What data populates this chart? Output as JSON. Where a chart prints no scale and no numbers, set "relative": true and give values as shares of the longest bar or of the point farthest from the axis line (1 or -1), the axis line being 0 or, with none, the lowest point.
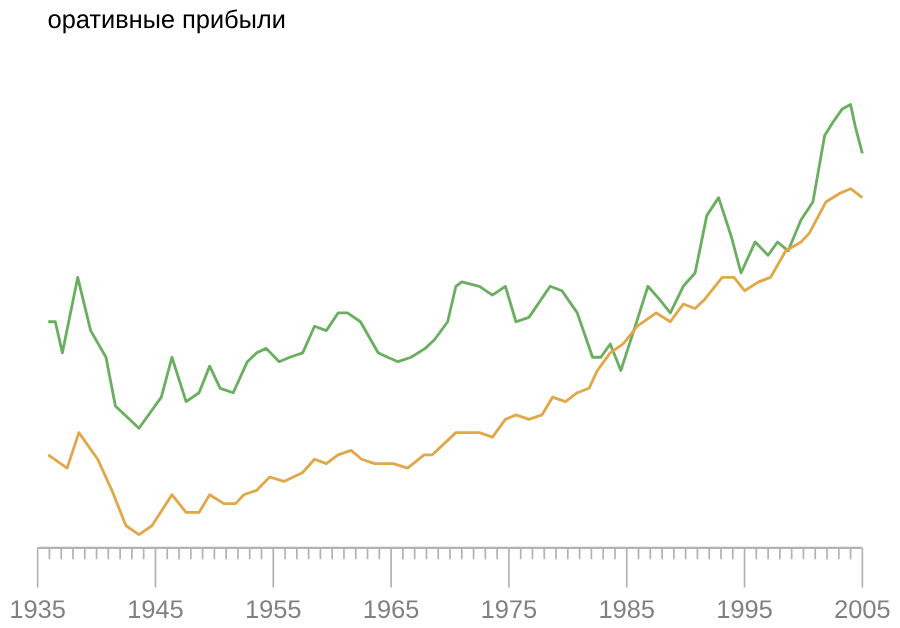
{
  "chart_data": {
    "type": "line",
    "title": "оративные прибыли",
    "relative": true,
    "xlim": [
      1935,
      2005
    ],
    "xticks": [
      1935,
      1945,
      1955,
      1965,
      1975,
      1985,
      1995,
      2005
    ],
    "marker": "none",
    "series": [
      {
        "color": "#6aaf5f",
        "x": [
          1935.9,
          1936.5,
          1937.1,
          1938.4,
          1939.5,
          1940.8,
          1941.6,
          1943.6,
          1945.5,
          1946.4,
          1947.6,
          1948.7,
          1949.6,
          1950.5,
          1951.6,
          1952.8,
          1953.6,
          1954.4,
          1955.5,
          1956.4,
          1957.5,
          1958.5,
          1959.5,
          1960.5,
          1961.3,
          1962.4,
          1963.9,
          1964.7,
          1965.6,
          1966.7,
          1967.9,
          1968.7,
          1969.8,
          1970.5,
          1971,
          1972.5,
          1973.6,
          1974.7,
          1975.6,
          1976.7,
          1978.5,
          1979.5,
          1980.8,
          1982.1,
          1982.8,
          1983.6,
          1984.5,
          1985.6,
          1986.8,
          1987.8,
          1988.7,
          1989.8,
          1990.8,
          1991.8,
          1992.8,
          1993.9,
          1994.7,
          1995.9,
          1997,
          1997.8,
          1998.7,
          1999.8,
          2000.8,
          2001.8,
          2002.5,
          2003.3,
          2004,
          2004.4,
          2005
        ],
        "values": [
          0.51,
          0.51,
          0.44,
          0.61,
          0.49,
          0.43,
          0.32,
          0.27,
          0.34,
          0.43,
          0.33,
          0.35,
          0.41,
          0.36,
          0.35,
          0.42,
          0.44,
          0.45,
          0.42,
          0.43,
          0.44,
          0.5,
          0.49,
          0.53,
          0.53,
          0.51,
          0.44,
          0.43,
          0.42,
          0.43,
          0.45,
          0.47,
          0.51,
          0.59,
          0.6,
          0.59,
          0.57,
          0.59,
          0.51,
          0.52,
          0.59,
          0.58,
          0.53,
          0.43,
          0.43,
          0.46,
          0.4,
          0.49,
          0.59,
          0.56,
          0.53,
          0.59,
          0.62,
          0.75,
          0.79,
          0.7,
          0.62,
          0.69,
          0.66,
          0.69,
          0.67,
          0.74,
          0.78,
          0.93,
          0.96,
          0.99,
          1.0,
          0.95,
          0.89
        ]
      },
      {
        "color": "#e0a848",
        "x": [
          1935.9,
          1937.5,
          1938.5,
          1940.1,
          1941.3,
          1942.5,
          1943.6,
          1944.7,
          1946.4,
          1947.6,
          1948.7,
          1949.6,
          1950.8,
          1951.8,
          1952.5,
          1953.6,
          1954.7,
          1955.9,
          1957.5,
          1958.5,
          1959.5,
          1960.5,
          1961.6,
          1962.5,
          1963.6,
          1965.2,
          1966.4,
          1967.8,
          1968.5,
          1970.5,
          1972.5,
          1973.6,
          1974.7,
          1975.6,
          1976.7,
          1977.8,
          1978.7,
          1979.8,
          1980.8,
          1981.8,
          1982.5,
          1983.6,
          1984.7,
          1985.9,
          1987.5,
          1988.7,
          1989.8,
          1990.8,
          1991.6,
          1993.1,
          1994.1,
          1995,
          1996.2,
          1997.2,
          1998.5,
          1999.8,
          2000.5,
          2001.9,
          2003.1,
          2004,
          2005
        ],
        "values": [
          0.21,
          0.18,
          0.26,
          0.2,
          0.13,
          0.05,
          0.03,
          0.05,
          0.12,
          0.08,
          0.08,
          0.12,
          0.1,
          0.1,
          0.12,
          0.13,
          0.16,
          0.15,
          0.17,
          0.2,
          0.19,
          0.21,
          0.22,
          0.2,
          0.19,
          0.19,
          0.18,
          0.21,
          0.21,
          0.26,
          0.26,
          0.25,
          0.29,
          0.3,
          0.29,
          0.3,
          0.34,
          0.33,
          0.35,
          0.36,
          0.4,
          0.44,
          0.46,
          0.5,
          0.53,
          0.51,
          0.55,
          0.54,
          0.56,
          0.61,
          0.61,
          0.58,
          0.6,
          0.61,
          0.67,
          0.69,
          0.71,
          0.78,
          0.8,
          0.81,
          0.79
        ]
      }
    ]
  }
}
